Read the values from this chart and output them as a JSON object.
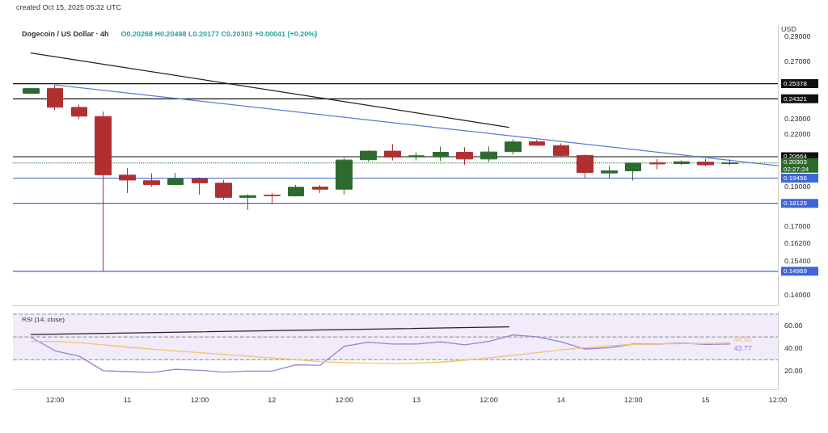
{
  "chart_data": [
    {
      "type": "candlestick",
      "title": "Dogecoin / US Dollar · 4h",
      "subtitle": "O0.20268 H0.20498 L0.20177 C0.20303 +0.00041 (+0.20%)",
      "ylabel": "USD",
      "annotations": [
        "created Oct 15, 2025 05:32 UTC"
      ],
      "x": [
        "--10-10T08:00",
        "--10-10T12:00",
        "--10-10T16:00",
        "--10-10T20:00",
        "--10-11T00:00",
        "--10-11T04:00",
        "--10-11T08:00",
        "--10-11T12:00",
        "--10-11T16:00",
        "--10-11T20:00",
        "--10-12T00:00",
        "--10-12T04:00",
        "--10-12T08:00",
        "--10-12T12:00",
        "--10-12T16:00",
        "--10-12T20:00",
        "--10-13T00:00",
        "--10-13T04:00",
        "--10-13T08:00",
        "--10-13T12:00",
        "--10-13T16:00",
        "--10-13T20:00",
        "--10-14T00:00",
        "--10-14T04:00",
        "--10-14T08:00",
        "--10-14T12:00",
        "--10-14T16:00",
        "--10-14T20:00",
        "--10-15T00:00",
        "--10-15T04:00"
      ],
      "ohlc": [
        [
          0.247,
          0.2507,
          0.2466,
          0.2503
        ],
        [
          0.2503,
          0.2529,
          0.2357,
          0.2375
        ],
        [
          0.2374,
          0.2394,
          0.2298,
          0.2316
        ],
        [
          0.2314,
          0.2346,
          0.1497,
          0.1964
        ],
        [
          0.1962,
          0.2002,
          0.1866,
          0.1935
        ],
        [
          0.1931,
          0.1972,
          0.1899,
          0.1911
        ],
        [
          0.1911,
          0.1974,
          0.1908,
          0.1941
        ],
        [
          0.1941,
          0.1949,
          0.1858,
          0.192
        ],
        [
          0.1918,
          0.1936,
          0.1829,
          0.1843
        ],
        [
          0.1843,
          0.1859,
          0.178,
          0.1852
        ],
        [
          0.1855,
          0.1866,
          0.1809,
          0.1852
        ],
        [
          0.1851,
          0.1908,
          0.1848,
          0.1896
        ],
        [
          0.1897,
          0.1908,
          0.1866,
          0.1886
        ],
        [
          0.1886,
          0.2058,
          0.1859,
          0.2047
        ],
        [
          0.2049,
          0.2102,
          0.2039,
          0.2099
        ],
        [
          0.2099,
          0.2141,
          0.2045,
          0.2065
        ],
        [
          0.2068,
          0.2092,
          0.2045,
          0.2072
        ],
        [
          0.2067,
          0.2126,
          0.2042,
          0.2092
        ],
        [
          0.2092,
          0.2122,
          0.202,
          0.2053
        ],
        [
          0.2053,
          0.2126,
          0.2037,
          0.2094
        ],
        [
          0.2096,
          0.2171,
          0.2079,
          0.2154
        ],
        [
          0.2155,
          0.2166,
          0.2131,
          0.2134
        ],
        [
          0.2132,
          0.2145,
          0.2067,
          0.2074
        ],
        [
          0.2073,
          0.2079,
          0.1944,
          0.1977
        ],
        [
          0.1974,
          0.2012,
          0.1942,
          0.1986
        ],
        [
          0.1986,
          0.2031,
          0.1932,
          0.2029
        ],
        [
          0.2031,
          0.2053,
          0.1995,
          0.2025
        ],
        [
          0.2027,
          0.2045,
          0.2019,
          0.2037
        ],
        [
          0.2035,
          0.2053,
          0.2012,
          0.202
        ],
        [
          0.20268,
          0.20498,
          0.20177,
          0.20303
        ]
      ],
      "colors": [
        "#2d6a2d",
        "#b03030",
        "#b03030",
        "#b03030",
        "#b03030",
        "#b03030",
        "#2d6a2d",
        "#b03030",
        "#b03030",
        "#2d6a2d",
        "#b03030",
        "#2d6a2d",
        "#b03030",
        "#2d6a2d",
        "#2d6a2d",
        "#b03030",
        "#2d6a2d",
        "#2d6a2d",
        "#b03030",
        "#2d6a2d",
        "#2d6a2d",
        "#b03030",
        "#b03030",
        "#b03030",
        "#2d6a2d",
        "#2d6a2d",
        "#b03030",
        "#2d6a2d",
        "#b03030",
        "#2d6a2d"
      ],
      "series": [
        {
          "type": "line",
          "color": "#5b7bd5",
          "x": [
            "--10-10T12:00",
            "--10-15T12:00"
          ],
          "values": [
            0.2529,
            0.2015
          ]
        },
        {
          "type": "line",
          "color": "#222222",
          "x": [
            "--10-10T08:00",
            "--10-13T15:20"
          ],
          "values": [
            0.2767,
            0.2245
          ]
        }
      ],
      "marker": "none",
      "log": "y",
      "xlim": [
        "--10-10T05:00",
        "--10-15T12:00"
      ],
      "ylim": [
        0.136,
        0.3
      ],
      "yticks": [
        {
          "value": 0.29,
          "label": "0.29000"
        },
        {
          "value": 0.27,
          "label": "0.27000"
        },
        {
          "value": 0.23,
          "label": "0.23000"
        },
        {
          "value": 0.22,
          "label": "0.22000"
        },
        {
          "value": 0.19,
          "label": "0.19000"
        },
        {
          "value": 0.17,
          "label": "0.17000"
        },
        {
          "value": 0.162,
          "label": "0.16200"
        },
        {
          "value": 0.154,
          "label": "0.15400"
        },
        {
          "value": 0.14,
          "label": "0.14000"
        }
      ],
      "tick_labels": "y",
      "ref_lines": [
        {
          "axis": "y",
          "value": 0.25378,
          "label": "0.25378",
          "color": "#111111"
        },
        {
          "axis": "y",
          "value": 0.24321,
          "label": "0.24321",
          "color": "#111111"
        },
        {
          "axis": "y",
          "value": 0.20664,
          "label": "0.20664",
          "color": "#111111"
        },
        {
          "axis": "y",
          "value": 0.20303,
          "label": "0.20303 02:27:24",
          "color": "#2d6a2d",
          "line_style": "dotted"
        },
        {
          "axis": "y",
          "value": 0.19456,
          "label": "0.19456",
          "color": "#3f66d9"
        },
        {
          "axis": "y",
          "value": 0.18125,
          "label": "0.18125",
          "color": "#3f66d9"
        },
        {
          "axis": "y",
          "value": 0.14969,
          "label": "0.14969",
          "color": "#3f66d9"
        }
      ]
    },
    {
      "type": "line",
      "title": "RSI (14, close)",
      "x": [
        "--10-10T08:00",
        "--10-10T12:00",
        "--10-10T16:00",
        "--10-10T20:00",
        "--10-11T00:00",
        "--10-11T04:00",
        "--10-11T08:00",
        "--10-11T12:00",
        "--10-11T16:00",
        "--10-11T20:00",
        "--10-12T00:00",
        "--10-12T04:00",
        "--10-12T08:00",
        "--10-12T12:00",
        "--10-12T16:00",
        "--10-12T20:00",
        "--10-13T00:00",
        "--10-13T04:00",
        "--10-13T08:00",
        "--10-13T12:00",
        "--10-13T16:00",
        "--10-13T20:00",
        "--10-14T00:00",
        "--10-14T04:00",
        "--10-14T08:00",
        "--10-14T12:00",
        "--10-14T16:00",
        "--10-14T20:00",
        "--10-15T00:00",
        "--10-15T04:00"
      ],
      "series": [
        {
          "color": "#9a7fd1",
          "values": [
            49.7,
            37.8,
            33.1,
            20.4,
            19.6,
            18.8,
            21.6,
            20.8,
            19.2,
            20.0,
            20.0,
            25.5,
            25.1,
            41.8,
            45.3,
            43.8,
            43.8,
            45.7,
            43.0,
            46.1,
            51.7,
            50.1,
            45.7,
            39.4,
            40.6,
            43.8,
            43.8,
            44.6,
            43.4,
            43.77
          ],
          "value_labels": [
            null,
            null,
            null,
            null,
            null,
            null,
            null,
            null,
            null,
            null,
            null,
            null,
            null,
            null,
            null,
            null,
            null,
            null,
            null,
            null,
            null,
            null,
            null,
            null,
            null,
            null,
            null,
            null,
            null,
            "43.77"
          ]
        },
        {
          "color": "#f0c46a",
          "values": [
            46.1,
            46.0,
            45.0,
            43.0,
            41.0,
            39.4,
            37.8,
            36.2,
            34.7,
            33.1,
            31.5,
            29.9,
            28.3,
            27.5,
            27.1,
            26.7,
            27.1,
            27.9,
            29.5,
            31.5,
            33.9,
            36.2,
            38.6,
            40.6,
            42.2,
            43.4,
            43.8,
            44.2,
            44.2,
            44.65
          ],
          "value_labels": [
            null,
            null,
            null,
            null,
            null,
            null,
            null,
            null,
            null,
            null,
            null,
            null,
            null,
            null,
            null,
            null,
            null,
            null,
            null,
            null,
            null,
            null,
            null,
            null,
            null,
            null,
            null,
            null,
            null,
            "44.65"
          ]
        },
        {
          "color": "#222222",
          "x": [
            "--10-10T08:00",
            "--10-13T15:20"
          ],
          "values": [
            52.1,
            58.8
          ]
        }
      ],
      "marker": "none",
      "xlim": [
        "--10-10T05:00",
        "--10-15T12:00"
      ],
      "xticks": [
        {
          "value": "--10-10T12:00",
          "label": "12:00"
        },
        {
          "value": "--10-11",
          "label": "11"
        },
        {
          "value": "--10-11T12:00",
          "label": "12:00"
        },
        {
          "value": "--10-12",
          "label": "12"
        },
        {
          "value": "--10-12T12:00",
          "label": "12:00"
        },
        {
          "value": "--10-13",
          "label": "13"
        },
        {
          "value": "--10-13T12:00",
          "label": "12:00"
        },
        {
          "value": "--10-14",
          "label": "14"
        },
        {
          "value": "--10-14T12:00",
          "label": "12:00"
        },
        {
          "value": "--10-15",
          "label": "15"
        },
        {
          "value": "--10-15T12:00",
          "label": "12:00"
        }
      ],
      "ylim": [
        4,
        72
      ],
      "yticks": [
        {
          "value": 20,
          "label": "20.00"
        },
        {
          "value": 40,
          "label": "40.00"
        },
        {
          "value": 60,
          "label": "60.00"
        }
      ],
      "ref_lines": [
        {
          "axis": "y",
          "value": 70,
          "label": null,
          "color": "#9e9e9e",
          "line_style": "dashed"
        },
        {
          "axis": "y",
          "value": 50,
          "label": null,
          "color": "#9e9e9e",
          "line_style": "dashed"
        },
        {
          "axis": "y",
          "value": 30,
          "label": null,
          "color": "#9e9e9e",
          "line_style": "dashed"
        }
      ],
      "bands": [
        {
          "axis": "y",
          "from": 30,
          "to": 70,
          "label": null,
          "color": "#f1ebfa"
        }
      ]
    }
  ]
}
